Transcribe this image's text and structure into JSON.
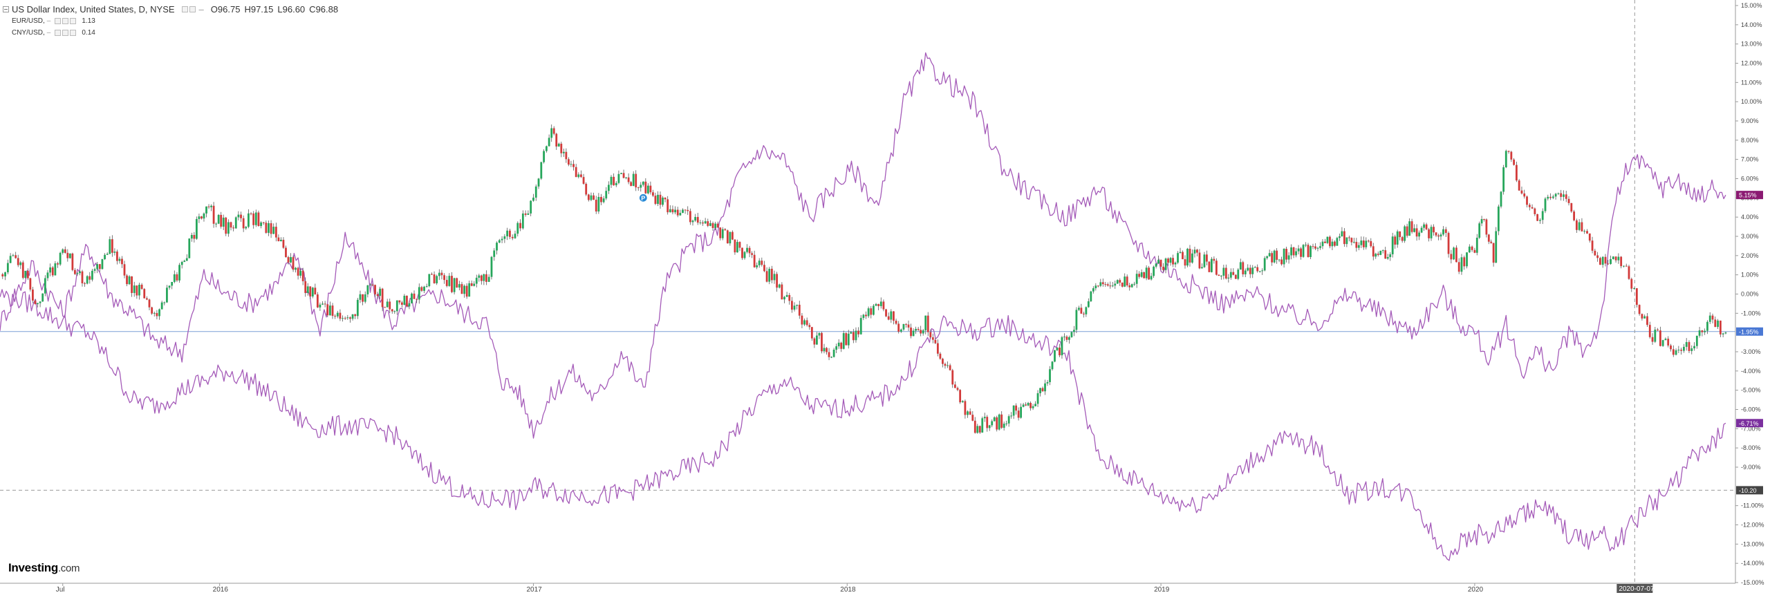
{
  "legend": {
    "main": {
      "title": "US Dollar Index, United States, D, NYSE",
      "open_label": "O",
      "open": "96.75",
      "high_label": "H",
      "high": "97.15",
      "low_label": "L",
      "low": "96.60",
      "close_label": "C",
      "close": "96.88"
    },
    "eur": {
      "label": "EUR/USD,",
      "value": "1.13"
    },
    "cny": {
      "label": "CNY/USD,",
      "value": "0.14"
    }
  },
  "logo": {
    "brand": "Investing",
    "suffix": ".com"
  },
  "colors": {
    "up": "#26a65b",
    "down": "#d23a3a",
    "wick": "#555555",
    "overlay": "#a45ab8",
    "eur_badge": "#8b1a72",
    "cny_badge": "#7b2f9e",
    "dxy_badge": "#4a78d4",
    "ref_badge": "#444444",
    "date_badge": "#555555",
    "hline": "#7a9fd6"
  },
  "chart_data": {
    "type": "line",
    "x_axis_labels": [
      "Jul",
      "2016",
      "2017",
      "2018",
      "2019",
      "2020"
    ],
    "x_positions": [
      0.5,
      1.0,
      2.0,
      3.0,
      4.0,
      5.0
    ],
    "x_range": [
      0.3,
      5.82
    ],
    "ylim": [
      -15,
      15
    ],
    "y_ticks": [
      15,
      14,
      13,
      12,
      11,
      10,
      9,
      8,
      7,
      6,
      5,
      4,
      3,
      2,
      1,
      0,
      -1,
      -3,
      -4,
      -5,
      -6,
      -7,
      -8,
      -9,
      -11,
      -12,
      -13,
      -14,
      -15
    ],
    "y_tick_labels": [
      "15.00%",
      "14.00%",
      "13.00%",
      "12.00%",
      "11.00%",
      "10.00%",
      "9.00%",
      "8.00%",
      "7.00%",
      "6.00%",
      "5.00%",
      "4.00%",
      "3.00%",
      "2.00%",
      "1.00%",
      "0.00%",
      "-1.00%",
      "-3.00%",
      "-4.00%",
      "-5.00%",
      "-6.00%",
      "-7.00%",
      "-8.00%",
      "-9.00%",
      "-11.00%",
      "-12.00%",
      "-13.00%",
      "-14.00%",
      "-15.00%"
    ],
    "series": [
      {
        "name": "US Dollar Index",
        "render": "candles",
        "x": [
          0.3,
          0.35,
          0.42,
          0.5,
          0.57,
          0.65,
          0.72,
          0.8,
          0.88,
          0.95,
          1.02,
          1.1,
          1.18,
          1.25,
          1.32,
          1.4,
          1.48,
          1.55,
          1.62,
          1.7,
          1.78,
          1.85,
          1.9,
          1.95,
          2.0,
          2.05,
          2.12,
          2.2,
          2.28,
          2.35,
          2.42,
          2.5,
          2.58,
          2.65,
          2.72,
          2.8,
          2.88,
          2.95,
          3.02,
          3.1,
          3.18,
          3.25,
          3.32,
          3.4,
          3.5,
          3.6,
          3.7,
          3.8,
          3.9,
          4.0,
          4.1,
          4.2,
          4.3,
          4.4,
          4.5,
          4.6,
          4.7,
          4.8,
          4.9,
          4.95,
          5.0,
          5.03,
          5.06,
          5.1,
          5.15,
          5.2,
          5.25,
          5.3,
          5.35,
          5.4,
          5.45,
          5.5,
          5.55,
          5.6,
          5.65,
          5.7,
          5.75,
          5.8
        ],
        "y": [
          1.0,
          2.0,
          -0.5,
          2.5,
          0.5,
          2.5,
          0.5,
          -1.0,
          1.5,
          4.5,
          3.5,
          4.0,
          3.0,
          1.0,
          -0.5,
          -1.5,
          0.5,
          -1.0,
          0.0,
          1.0,
          0.0,
          1.0,
          3.0,
          3.5,
          5.0,
          8.5,
          6.5,
          4.5,
          6.5,
          5.5,
          4.5,
          4.0,
          3.5,
          2.5,
          1.5,
          0.0,
          -2.0,
          -3.0,
          -2.0,
          -0.5,
          -2.0,
          -1.5,
          -4.0,
          -7.0,
          -6.5,
          -5.5,
          -2.0,
          0.5,
          0.5,
          1.5,
          2.0,
          1.0,
          1.5,
          2.0,
          2.5,
          3.0,
          2.0,
          3.5,
          3.0,
          1.5,
          2.5,
          4.0,
          2.0,
          7.5,
          5.5,
          4.0,
          5.5,
          4.5,
          3.0,
          1.5,
          2.0,
          0.5,
          -2.0,
          -2.5,
          -3.0,
          -2.5,
          -1.5,
          -2.0
        ]
      },
      {
        "name": "EUR/USD",
        "render": "line",
        "x": [
          0.3,
          0.4,
          0.5,
          0.58,
          0.65,
          0.72,
          0.8,
          0.88,
          0.95,
          1.02,
          1.1,
          1.18,
          1.25,
          1.32,
          1.4,
          1.48,
          1.55,
          1.62,
          1.7,
          1.78,
          1.85,
          1.9,
          1.95,
          2.0,
          2.05,
          2.12,
          2.2,
          2.28,
          2.35,
          2.42,
          2.5,
          2.58,
          2.65,
          2.72,
          2.8,
          2.88,
          2.95,
          3.02,
          3.1,
          3.18,
          3.25,
          3.32,
          3.4,
          3.5,
          3.6,
          3.7,
          3.8,
          3.9,
          4.0,
          4.1,
          4.2,
          4.3,
          4.4,
          4.5,
          4.6,
          4.7,
          4.8,
          4.9,
          4.95,
          5.0,
          5.05,
          5.1,
          5.15,
          5.2,
          5.25,
          5.3,
          5.35,
          5.4,
          5.45,
          5.5,
          5.55,
          5.6,
          5.65,
          5.7,
          5.75,
          5.8
        ],
        "y": [
          -1.5,
          1.5,
          -1.0,
          2.5,
          0.0,
          -1.0,
          -2.5,
          -3.0,
          1.0,
          0.0,
          -0.5,
          0.5,
          2.0,
          -2.0,
          3.0,
          0.5,
          -1.5,
          -0.5,
          0.0,
          -1.0,
          -1.5,
          -4.5,
          -5.0,
          -7.0,
          -5.5,
          -4.0,
          -5.5,
          -3.0,
          -5.0,
          0.5,
          2.5,
          3.0,
          6.0,
          7.5,
          7.0,
          4.0,
          5.5,
          6.5,
          4.5,
          10.0,
          12.0,
          11.0,
          10.0,
          6.5,
          5.0,
          4.0,
          5.5,
          3.0,
          1.5,
          0.5,
          -0.5,
          0.0,
          -1.0,
          -1.5,
          0.0,
          -1.0,
          -2.0,
          0.0,
          -1.5,
          -2.0,
          -3.5,
          -1.5,
          -4.0,
          -3.0,
          -4.0,
          -2.0,
          -3.0,
          -1.5,
          5.0,
          7.0,
          6.5,
          5.5,
          6.0,
          5.0,
          5.5,
          5.15
        ]
      },
      {
        "name": "CNY/USD",
        "render": "line",
        "x": [
          0.3,
          0.4,
          0.5,
          0.58,
          0.65,
          0.72,
          0.8,
          0.88,
          0.95,
          1.02,
          1.1,
          1.18,
          1.25,
          1.32,
          1.4,
          1.48,
          1.55,
          1.62,
          1.7,
          1.78,
          1.85,
          1.9,
          1.95,
          2.0,
          2.05,
          2.12,
          2.2,
          2.28,
          2.35,
          2.42,
          2.5,
          2.58,
          2.65,
          2.72,
          2.8,
          2.88,
          2.95,
          3.02,
          3.1,
          3.18,
          3.25,
          3.32,
          3.4,
          3.5,
          3.6,
          3.7,
          3.8,
          3.9,
          4.0,
          4.1,
          4.2,
          4.3,
          4.4,
          4.5,
          4.6,
          4.7,
          4.8,
          4.9,
          4.95,
          5.0,
          5.05,
          5.1,
          5.15,
          5.2,
          5.25,
          5.3,
          5.35,
          5.4,
          5.45,
          5.5,
          5.55,
          5.6,
          5.65,
          5.7,
          5.75,
          5.8
        ],
        "y": [
          0.0,
          -0.5,
          -1.5,
          -2.0,
          -3.5,
          -5.5,
          -5.8,
          -5.0,
          -4.5,
          -4.0,
          -4.5,
          -5.5,
          -6.5,
          -7.0,
          -6.8,
          -7.0,
          -7.2,
          -8.5,
          -9.5,
          -10.5,
          -10.8,
          -10.5,
          -10.8,
          -10.0,
          -10.2,
          -10.4,
          -10.5,
          -10.4,
          -10.0,
          -9.5,
          -9.0,
          -8.5,
          -7.0,
          -5.5,
          -4.5,
          -5.8,
          -6.0,
          -5.8,
          -5.5,
          -4.5,
          -2.5,
          -1.5,
          -2.0,
          -1.5,
          -2.5,
          -3.0,
          -8.5,
          -9.5,
          -10.5,
          -11.0,
          -10.0,
          -8.5,
          -7.5,
          -8.0,
          -10.5,
          -10.0,
          -10.5,
          -13.5,
          -13.0,
          -12.5,
          -12.5,
          -12.0,
          -11.5,
          -11.0,
          -11.5,
          -12.5,
          -12.8,
          -12.5,
          -13.0,
          -12.0,
          -11.0,
          -10.5,
          -9.5,
          -8.5,
          -8.0,
          -6.71
        ]
      }
    ],
    "price_badges": [
      {
        "label": "5.15%",
        "value": 5.15,
        "color_key": "eur_badge"
      },
      {
        "label": "-1.95%",
        "value": -1.95,
        "color_key": "dxy_badge"
      },
      {
        "label": "-6.71%",
        "value": -6.71,
        "color_key": "cny_badge"
      },
      {
        "label": "-10.20",
        "value": -10.2,
        "color_key": "ref_badge"
      }
    ],
    "event_marker": {
      "label": "P",
      "x": 2.35,
      "y": 5.0
    },
    "crosshair": {
      "x": 5.51,
      "label": "2020-07-07"
    },
    "ref_line_value": -10.2,
    "current_line_value": -1.95
  }
}
